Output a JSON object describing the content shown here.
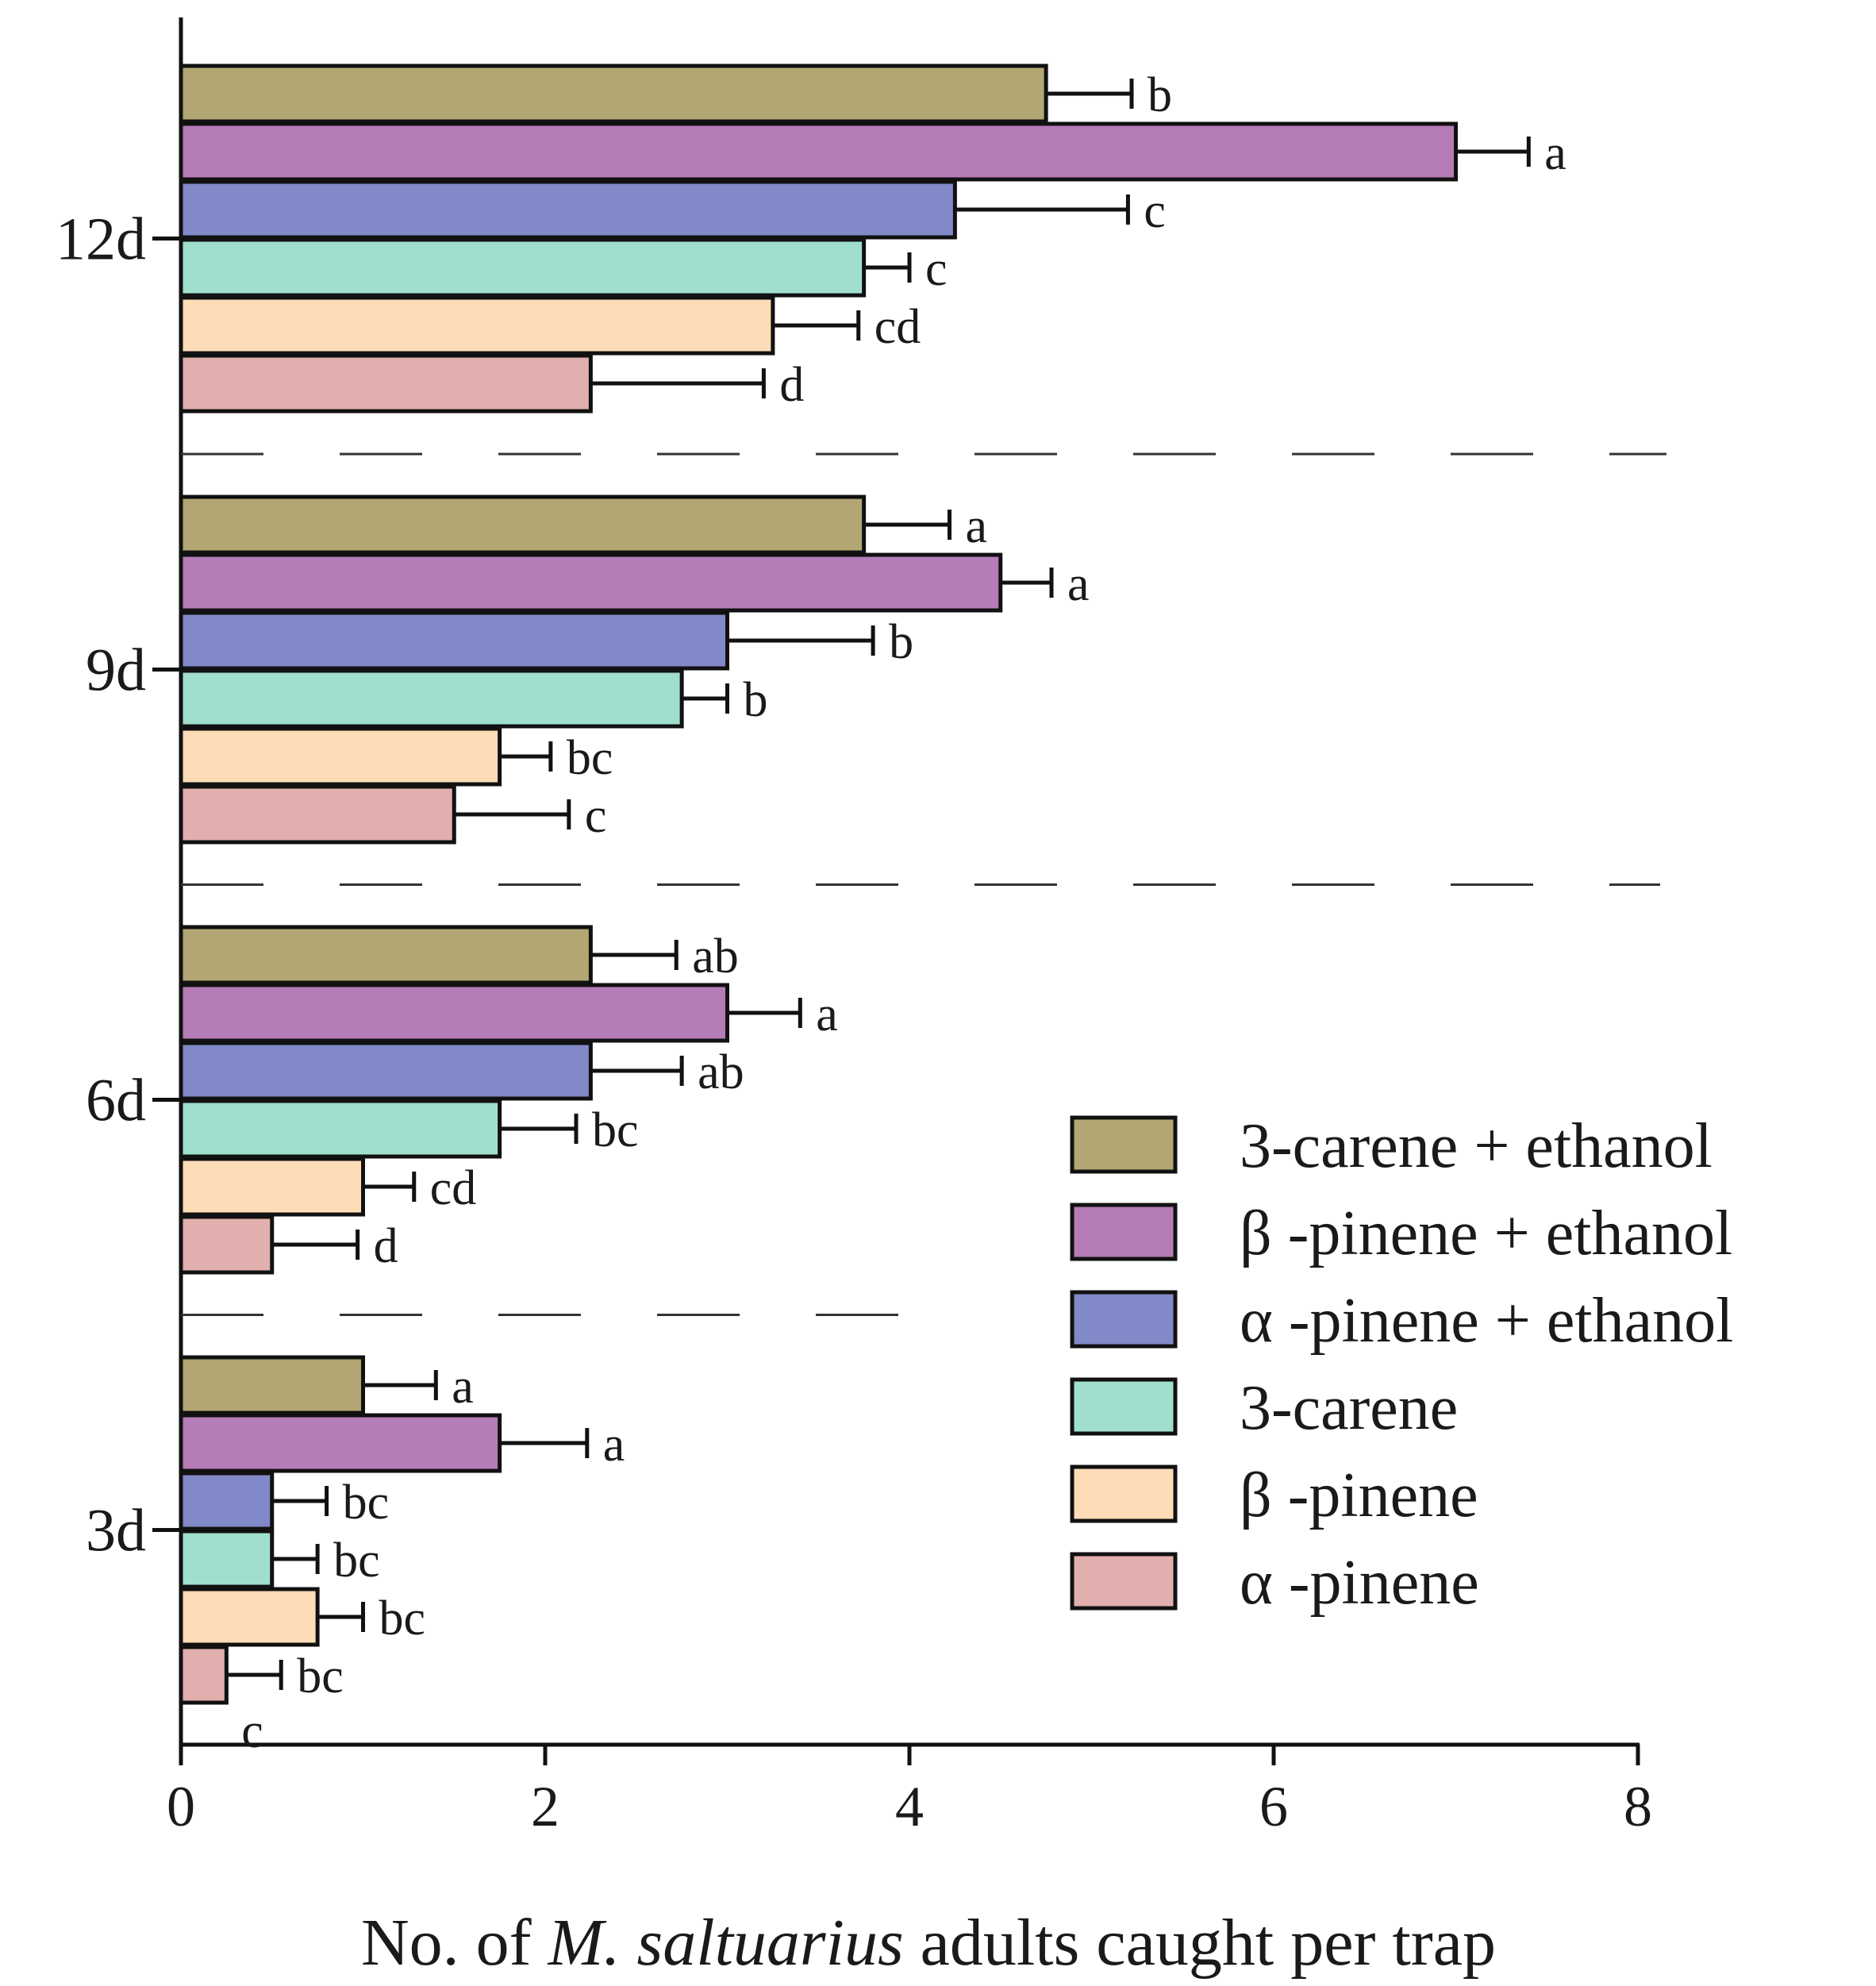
{
  "chart_data": {
    "type": "bar",
    "orientation": "horizontal",
    "title": "",
    "xlabel": {
      "prefix": "No. of ",
      "species": "M. saltuarius",
      "suffix": " adults caught per trap"
    },
    "ylabel": "",
    "xlim": [
      0,
      8
    ],
    "xticks": [
      "0",
      "2",
      "4",
      "6",
      "8"
    ],
    "categories": [
      "12d",
      "9d",
      "6d",
      "3d"
    ],
    "grid": false,
    "legend_position": "right",
    "series": [
      {
        "name": "3-carene + ethanol",
        "color": "#b2a673",
        "values": [
          4.75,
          3.75,
          2.25,
          1.0
        ],
        "errors": [
          0.47,
          0.47,
          0.47,
          0.4
        ],
        "labels": [
          "b",
          "a",
          "ab",
          "a"
        ]
      },
      {
        "name": "β -pinene + ethanol",
        "color": "#b57cb8",
        "values": [
          7.0,
          4.5,
          3.0,
          1.75
        ],
        "errors": [
          0.4,
          0.28,
          0.4,
          0.48
        ],
        "labels": [
          "a",
          "a",
          "a",
          "a"
        ]
      },
      {
        "name": "α -pinene + ethanol",
        "color": "#8289c8",
        "values": [
          4.25,
          3.0,
          2.25,
          0.5
        ],
        "errors": [
          0.95,
          0.8,
          0.5,
          0.3
        ],
        "labels": [
          "c",
          "b",
          "ab",
          "bc"
        ]
      },
      {
        "name": "3-carene",
        "color": "#a0dece",
        "values": [
          3.75,
          2.75,
          1.75,
          0.5
        ],
        "errors": [
          0.25,
          0.25,
          0.42,
          0.25
        ],
        "labels": [
          "c",
          "b",
          "bc",
          "bc"
        ]
      },
      {
        "name": "β -pinene",
        "color": "#fddcb7",
        "values": [
          3.25,
          1.75,
          1.0,
          0.75
        ],
        "errors": [
          0.47,
          0.28,
          0.28,
          0.25
        ],
        "labels": [
          "cd",
          "bc",
          "cd",
          "bc"
        ]
      },
      {
        "name": "α -pinene",
        "color": "#e1afad",
        "values": [
          2.25,
          1.5,
          0.5,
          0.25
        ],
        "errors": [
          0.95,
          0.63,
          0.47,
          0.3
        ],
        "labels": [
          "d",
          "c",
          "d",
          "bc"
        ]
      }
    ],
    "extra_labels": [
      {
        "category": "3d",
        "text": "c"
      }
    ]
  }
}
